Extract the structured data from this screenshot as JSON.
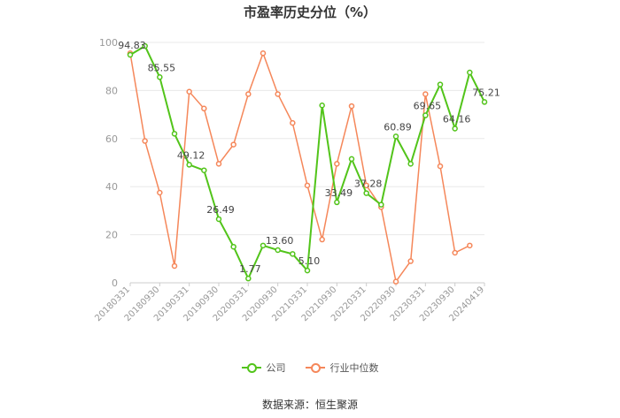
{
  "title": "市盈率历史分位（%）",
  "source": "数据来源：恒生聚源",
  "colors": {
    "company": "#52c41a",
    "industry": "#f5875a",
    "grid": "#e8e8e8",
    "axis_text": "#999999",
    "label_text": "#444444"
  },
  "chart_data": {
    "type": "line",
    "title": "市盈率历史分位（%）",
    "ylim": [
      0,
      100
    ],
    "yticks": [
      0,
      20,
      40,
      60,
      80,
      100
    ],
    "grid": true,
    "legend_position": "bottom",
    "xtick_labels": [
      "20180331",
      "20180930",
      "20190331",
      "20190930",
      "20200331",
      "20200930",
      "20210331",
      "20210930",
      "20220331",
      "20220930",
      "20230331",
      "20230930",
      "20240419"
    ],
    "x": [
      "20180331",
      "20180630",
      "20180930",
      "20181231",
      "20190331",
      "20190630",
      "20190930",
      "20191231",
      "20200331",
      "20200630",
      "20200930",
      "20201231",
      "20210331",
      "20210630",
      "20210930",
      "20211231",
      "20220331",
      "20220630",
      "20220930",
      "20221231",
      "20230331",
      "20230630",
      "20230930",
      "20231231",
      "20240419"
    ],
    "series": [
      {
        "name": "公司",
        "color": "#52c41a",
        "values": [
          94.83,
          98.5,
          85.55,
          62.0,
          49.12,
          46.8,
          26.49,
          15.0,
          1.77,
          15.5,
          13.6,
          12.0,
          5.1,
          73.8,
          33.49,
          51.5,
          37.28,
          32.5,
          60.89,
          49.5,
          69.65,
          82.5,
          64.16,
          87.5,
          75.21
        ],
        "labels": [
          "94.83",
          "",
          "85.55",
          "",
          "49.12",
          "",
          "26.49",
          "",
          "1.77",
          "",
          "13.60",
          "",
          "5.10",
          "",
          "33.49",
          "",
          "37.28",
          "",
          "60.89",
          "",
          "69.65",
          "",
          "64.16",
          "",
          "75.21"
        ]
      },
      {
        "name": "行业中位数",
        "color": "#f5875a",
        "values": [
          95.5,
          59.0,
          37.5,
          7.0,
          79.5,
          72.5,
          49.5,
          57.5,
          78.5,
          95.5,
          78.5,
          66.5,
          40.5,
          18.0,
          49.5,
          73.5,
          40.5,
          31.5,
          0.5,
          9.0,
          78.5,
          48.5,
          12.5,
          15.5,
          null
        ]
      }
    ]
  }
}
